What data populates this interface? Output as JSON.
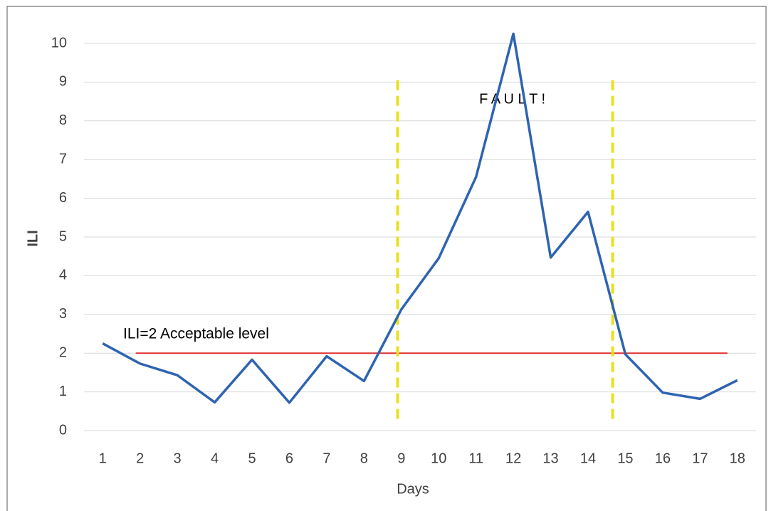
{
  "chart_data": {
    "type": "line",
    "x_label": "Days",
    "y_label": "ILI",
    "categories": [
      "1",
      "2",
      "3",
      "4",
      "5",
      "6",
      "7",
      "8",
      "9",
      "10",
      "11",
      "12",
      "13",
      "14",
      "15",
      "16",
      "17",
      "18"
    ],
    "series": [
      {
        "name": "ILI",
        "color": "#2e64b0",
        "values": [
          2.25,
          1.73,
          1.43,
          0.73,
          1.83,
          0.72,
          1.92,
          1.28,
          3.13,
          4.45,
          6.55,
          10.25,
          4.47,
          5.65,
          1.97,
          0.98,
          0.82,
          1.3
        ]
      }
    ],
    "ylim": [
      0,
      10
    ],
    "yticks": [
      0,
      1,
      2,
      3,
      4,
      5,
      6,
      7,
      8,
      9,
      10
    ],
    "grid": true,
    "threshold": {
      "value": 2,
      "label": "ILI=2 Acceptable level",
      "color": "#e03030"
    },
    "fault": {
      "label": "F A U L T !",
      "positions": [
        8.9,
        14.66
      ],
      "color": "#e8e020"
    }
  }
}
